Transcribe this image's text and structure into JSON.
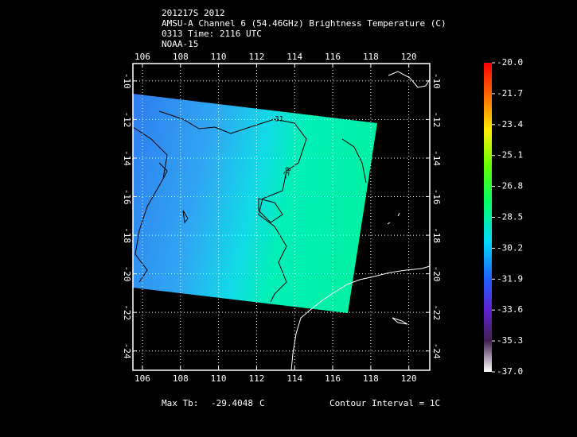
{
  "header": {
    "lines": [
      "201217S 2012",
      "AMSU-A Channel 6 (54.46GHz) Brightness Temperature (C)",
      "0313 Time: 2116 UTC",
      "NOAA-15"
    ]
  },
  "map": {
    "xlim": [
      105.5,
      121.1
    ],
    "ylim": [
      -9.1,
      -25.0
    ],
    "lon_ticks": [
      106,
      108,
      110,
      112,
      114,
      116,
      118,
      120
    ],
    "lat_ticks": [
      -10,
      -12,
      -14,
      -16,
      -18,
      -20,
      -22,
      -24
    ],
    "contour_labels": [
      "-31",
      "-30"
    ]
  },
  "colorbar": {
    "lim": [
      -37.0,
      -20.0
    ],
    "ticks": [
      {
        "value": -20.0,
        "label": "-20.0"
      },
      {
        "value": -21.7,
        "label": "-21.7"
      },
      {
        "value": -23.4,
        "label": "-23.4"
      },
      {
        "value": -25.1,
        "label": "-25.1"
      },
      {
        "value": -26.8,
        "label": "-26.8"
      },
      {
        "value": -28.5,
        "label": "-28.5"
      },
      {
        "value": -30.2,
        "label": "-30.2"
      },
      {
        "value": -31.9,
        "label": "-31.9"
      },
      {
        "value": -33.6,
        "label": "-33.6"
      },
      {
        "value": -35.3,
        "label": "-35.3"
      },
      {
        "value": -37.0,
        "label": "-37.0"
      }
    ]
  },
  "footer": {
    "max_label": "Max Tb:",
    "max_value": -29.4048,
    "unit": "C",
    "contour_interval": "Contour Interval = 1C"
  }
}
